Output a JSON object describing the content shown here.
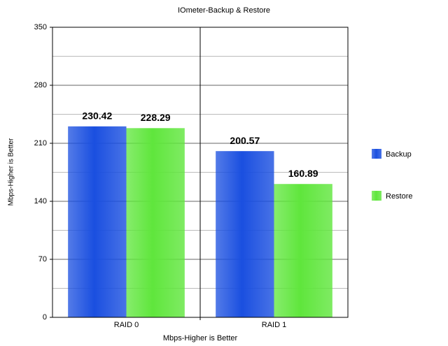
{
  "chart_data": {
    "type": "bar",
    "title": "IOmeter-Backup & Restore",
    "x_label": "Mbps-Higher is Better",
    "y_label": "Mbps-Higher is Better",
    "categories": [
      "RAID 0",
      "RAID 1"
    ],
    "series": [
      {
        "name": "Backup",
        "color": "#1a4fe0",
        "values": [
          230.42,
          200.57
        ]
      },
      {
        "name": "Restore",
        "color": "#5fe63c",
        "values": [
          228.29,
          160.89
        ]
      }
    ],
    "ylim": [
      0,
      350
    ],
    "yticks": [
      0,
      70,
      140,
      210,
      280,
      350
    ],
    "grid": true,
    "legend": "right"
  }
}
